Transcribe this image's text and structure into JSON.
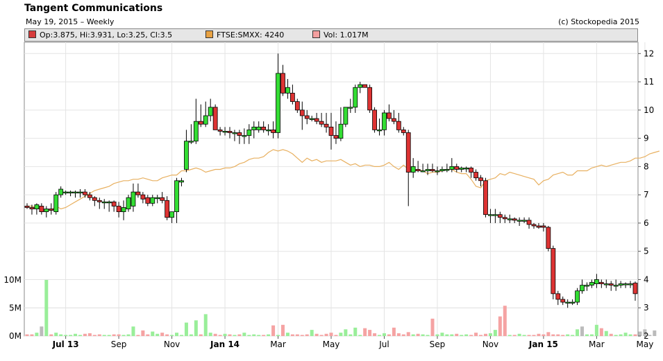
{
  "header": {
    "title": "Tangent Communications",
    "subtitle": "May 19, 2015 – Weekly",
    "copyright": "(c) Stockopedia 2015"
  },
  "legend": [
    {
      "label": "Op:3.875, Hi:3.931, Lo:3.25, Cl:3.5",
      "color": "#d63b3b"
    },
    {
      "label": "FTSE:SMXX: 4240",
      "color": "#e8a243"
    },
    {
      "label": "Vol: 1.017M",
      "color": "#f4a0a0"
    }
  ],
  "chart_data": {
    "type": "candlestick",
    "price_axis": {
      "ticks": [
        "12",
        "11",
        "10",
        "9",
        "8",
        "7",
        "6",
        "5",
        "4",
        "3",
        "2"
      ],
      "ylim": [
        2,
        12.4
      ]
    },
    "volume_axis": {
      "ticks": [
        "10M",
        "5M",
        "0M"
      ],
      "ylim": [
        0,
        10
      ]
    },
    "x_tick_labels": [
      "Jul 13",
      "Sep",
      "Nov",
      "Jan 14",
      "Mar",
      "May",
      "Jul",
      "Sep",
      "Nov",
      "Jan 15",
      "Mar",
      "May"
    ],
    "x_tick_weeks": [
      8,
      19,
      30,
      41,
      52,
      63,
      74,
      85,
      96,
      107,
      118,
      128
    ],
    "colors": {
      "up": "#33dd33",
      "down": "#dd3333",
      "index_line": "#e8b060",
      "vol_up": "#99ee99",
      "vol_down": "#f5a3a3",
      "vol_neutral": "#bbbbbb"
    },
    "candles": [
      [
        6.6,
        6.7,
        6.5,
        6.55
      ],
      [
        6.55,
        6.65,
        6.3,
        6.5
      ],
      [
        6.5,
        6.7,
        6.3,
        6.65
      ],
      [
        6.6,
        6.7,
        6.3,
        6.4
      ],
      [
        6.4,
        6.6,
        6.2,
        6.5
      ],
      [
        6.5,
        6.7,
        6.3,
        6.45
      ],
      [
        6.4,
        7.1,
        6.3,
        7.0
      ],
      [
        7.0,
        7.3,
        6.9,
        7.2
      ],
      [
        7.1,
        7.15,
        7.0,
        7.1
      ],
      [
        7.1,
        7.15,
        6.95,
        7.1
      ],
      [
        7.1,
        7.15,
        6.9,
        7.1
      ],
      [
        7.1,
        7.2,
        6.9,
        7.1
      ],
      [
        7.1,
        7.2,
        6.9,
        7.0
      ],
      [
        7.0,
        7.1,
        6.8,
        6.9
      ],
      [
        6.9,
        6.95,
        6.6,
        6.8
      ],
      [
        6.8,
        6.9,
        6.5,
        6.75
      ],
      [
        6.75,
        6.85,
        6.5,
        6.75
      ],
      [
        6.75,
        6.8,
        6.4,
        6.75
      ],
      [
        6.75,
        6.8,
        6.4,
        6.6
      ],
      [
        6.6,
        6.75,
        6.2,
        6.4
      ],
      [
        6.4,
        6.8,
        6.1,
        6.55
      ],
      [
        6.5,
        7.0,
        6.4,
        6.9
      ],
      [
        6.6,
        7.4,
        6.4,
        7.1
      ],
      [
        7.1,
        7.4,
        6.9,
        7.0
      ],
      [
        7.0,
        7.1,
        6.7,
        6.85
      ],
      [
        6.9,
        7.0,
        6.6,
        6.7
      ],
      [
        6.7,
        7.0,
        6.6,
        6.9
      ],
      [
        6.9,
        7.0,
        6.7,
        6.9
      ],
      [
        6.9,
        7.1,
        6.7,
        6.8
      ],
      [
        6.8,
        6.95,
        6.1,
        6.2
      ],
      [
        6.2,
        6.4,
        6.0,
        6.4
      ],
      [
        6.4,
        7.6,
        6.0,
        7.5
      ],
      [
        7.45,
        7.6,
        7.3,
        7.5
      ],
      [
        7.9,
        9.3,
        7.8,
        8.9
      ],
      [
        8.9,
        9.5,
        8.8,
        8.9
      ],
      [
        8.9,
        10.4,
        8.8,
        9.6
      ],
      [
        9.6,
        10.2,
        9.4,
        9.5
      ],
      [
        9.5,
        10.3,
        9.4,
        9.8
      ],
      [
        9.8,
        10.4,
        9.6,
        10.1
      ],
      [
        10.1,
        10.2,
        9.3,
        9.3
      ],
      [
        9.3,
        9.4,
        9.1,
        9.25
      ],
      [
        9.25,
        9.4,
        9.1,
        9.25
      ],
      [
        9.25,
        9.4,
        9.0,
        9.2
      ],
      [
        9.2,
        9.3,
        8.9,
        9.2
      ],
      [
        9.2,
        9.3,
        8.8,
        9.1
      ],
      [
        9.1,
        9.35,
        8.8,
        9.1
      ],
      [
        9.1,
        9.5,
        8.8,
        9.3
      ],
      [
        9.3,
        9.6,
        9.0,
        9.4
      ],
      [
        9.3,
        9.6,
        9.2,
        9.4
      ],
      [
        9.4,
        9.6,
        9.2,
        9.3
      ],
      [
        9.3,
        9.5,
        9.1,
        9.3
      ],
      [
        9.3,
        9.6,
        9.0,
        9.2
      ],
      [
        9.2,
        12.0,
        9.0,
        11.3
      ],
      [
        11.3,
        11.6,
        10.5,
        10.6
      ],
      [
        10.6,
        11.1,
        10.4,
        10.8
      ],
      [
        10.6,
        10.9,
        10.2,
        10.3
      ],
      [
        10.3,
        10.4,
        9.9,
        10.0
      ],
      [
        10.0,
        10.3,
        9.3,
        9.8
      ],
      [
        9.8,
        10.0,
        9.5,
        9.7
      ],
      [
        9.7,
        9.8,
        9.6,
        9.7
      ],
      [
        9.7,
        9.9,
        9.5,
        9.6
      ],
      [
        9.6,
        9.9,
        9.4,
        9.5
      ],
      [
        9.5,
        9.9,
        9.2,
        9.4
      ],
      [
        9.4,
        9.9,
        8.6,
        9.1
      ],
      [
        9.1,
        9.6,
        8.8,
        9.0
      ],
      [
        9.0,
        10.1,
        8.9,
        9.5
      ],
      [
        9.5,
        10.1,
        9.4,
        10.1
      ],
      [
        10.1,
        10.4,
        9.9,
        10.1
      ],
      [
        10.1,
        10.9,
        9.9,
        10.8
      ],
      [
        10.8,
        11.0,
        10.6,
        10.9
      ],
      [
        10.9,
        10.9,
        10.8,
        10.8
      ],
      [
        10.8,
        10.9,
        9.9,
        10.0
      ],
      [
        10.0,
        10.1,
        9.2,
        9.3
      ],
      [
        9.3,
        9.7,
        9.1,
        9.3
      ],
      [
        9.3,
        10.0,
        9.1,
        9.9
      ],
      [
        9.9,
        10.2,
        9.6,
        9.7
      ],
      [
        9.7,
        10.0,
        9.5,
        9.6
      ],
      [
        9.6,
        9.9,
        9.2,
        9.3
      ],
      [
        9.3,
        9.4,
        9.1,
        9.2
      ],
      [
        9.2,
        9.3,
        6.6,
        7.8
      ],
      [
        7.8,
        8.3,
        7.6,
        8.0
      ],
      [
        7.9,
        8.2,
        7.8,
        7.85
      ],
      [
        7.85,
        8.1,
        7.8,
        7.85
      ],
      [
        7.85,
        8.1,
        7.7,
        7.9
      ],
      [
        7.9,
        8.1,
        7.8,
        7.85
      ],
      [
        7.85,
        8.0,
        7.7,
        7.85
      ],
      [
        7.85,
        8.0,
        7.8,
        7.9
      ],
      [
        7.9,
        8.1,
        7.8,
        7.9
      ],
      [
        7.9,
        8.3,
        7.8,
        8.0
      ],
      [
        8.0,
        8.1,
        7.8,
        7.9
      ],
      [
        7.9,
        8.0,
        7.8,
        7.95
      ],
      [
        7.95,
        8.0,
        7.8,
        7.95
      ],
      [
        7.95,
        8.0,
        7.6,
        7.8
      ],
      [
        7.8,
        7.9,
        7.5,
        7.6
      ],
      [
        7.6,
        7.7,
        7.3,
        7.5
      ],
      [
        7.5,
        7.6,
        6.2,
        6.3
      ],
      [
        6.3,
        6.5,
        6.0,
        6.3
      ],
      [
        6.3,
        6.5,
        6.0,
        6.3
      ],
      [
        6.3,
        6.4,
        6.0,
        6.2
      ],
      [
        6.2,
        6.3,
        6.0,
        6.15
      ],
      [
        6.15,
        6.3,
        6.0,
        6.15
      ],
      [
        6.15,
        6.2,
        6.0,
        6.1
      ],
      [
        6.1,
        6.2,
        5.9,
        6.1
      ],
      [
        6.1,
        6.2,
        6.0,
        6.1
      ],
      [
        6.1,
        6.2,
        5.8,
        5.95
      ],
      [
        5.95,
        6.0,
        5.8,
        5.9
      ],
      [
        5.9,
        6.0,
        5.8,
        5.85
      ],
      [
        5.9,
        6.0,
        5.7,
        5.85
      ],
      [
        5.85,
        5.9,
        5.0,
        5.1
      ],
      [
        5.1,
        5.2,
        3.3,
        3.5
      ],
      [
        3.5,
        3.6,
        3.1,
        3.3
      ],
      [
        3.3,
        3.4,
        3.1,
        3.2
      ],
      [
        3.2,
        3.3,
        3.0,
        3.2
      ],
      [
        3.2,
        3.3,
        3.1,
        3.2
      ],
      [
        3.2,
        3.7,
        3.1,
        3.6
      ],
      [
        3.6,
        4.0,
        3.5,
        3.8
      ],
      [
        3.8,
        3.9,
        3.6,
        3.8
      ],
      [
        3.8,
        4.0,
        3.7,
        3.9
      ],
      [
        3.85,
        4.2,
        3.7,
        4.0
      ],
      [
        3.9,
        4.0,
        3.7,
        3.85
      ],
      [
        3.85,
        4.0,
        3.7,
        3.85
      ],
      [
        3.85,
        3.95,
        3.6,
        3.8
      ],
      [
        3.8,
        4.0,
        3.6,
        3.8
      ],
      [
        3.8,
        3.95,
        3.7,
        3.85
      ],
      [
        3.85,
        3.9,
        3.7,
        3.85
      ],
      [
        3.85,
        3.95,
        3.7,
        3.85
      ],
      [
        3.875,
        3.931,
        3.25,
        3.5
      ]
    ],
    "volume": [
      0.3,
      0.3,
      0.6,
      1.7,
      10.0,
      0.3,
      0.6,
      0.3,
      0.2,
      0.2,
      0.4,
      0.2,
      0.4,
      0.5,
      0.2,
      0.3,
      0.2,
      0.2,
      0.3,
      0.3,
      0.2,
      0.3,
      1.7,
      0.2,
      1.0,
      0.3,
      0.8,
      0.4,
      0.6,
      0.3,
      0.2,
      0.6,
      0.2,
      2.4,
      0.3,
      2.8,
      0.3,
      3.9,
      0.6,
      0.4,
      0.2,
      0.4,
      0.3,
      0.2,
      0.3,
      0.6,
      0.2,
      0.3,
      0.2,
      0.2,
      0.3,
      1.9,
      0.2,
      2.0,
      0.6,
      0.3,
      0.3,
      0.2,
      0.3,
      1.1,
      0.4,
      0.2,
      0.4,
      0.6,
      0.2,
      0.6,
      1.2,
      0.3,
      1.5,
      0.2,
      1.4,
      1.1,
      0.5,
      0.2,
      0.5,
      0.3,
      1.5,
      0.5,
      0.3,
      0.7,
      0.3,
      0.4,
      0.3,
      0.2,
      3.1,
      0.3,
      0.6,
      0.3,
      0.3,
      0.4,
      0.2,
      0.3,
      0.2,
      0.6,
      0.2,
      0.4,
      0.5,
      1.1,
      3.5,
      5.4,
      0.2,
      0.2,
      0.4,
      0.2,
      0.2,
      0.2,
      0.4,
      0.3,
      0.7,
      0.3,
      0.3,
      0.2,
      0.3,
      0.2,
      1.2,
      1.7,
      0.3,
      0.3,
      2.0,
      1.4,
      0.9,
      0.4,
      0.2,
      0.3,
      0.6,
      0.3,
      0.3,
      0.8,
      1.2,
      0.2,
      1.0
    ],
    "index_line": [
      6.6,
      6.6,
      6.55,
      6.5,
      6.45,
      6.45,
      6.6,
      6.5,
      6.55,
      6.65,
      6.75,
      6.85,
      6.95,
      7.05,
      7.15,
      7.2,
      7.25,
      7.3,
      7.4,
      7.45,
      7.5,
      7.5,
      7.55,
      7.55,
      7.6,
      7.55,
      7.5,
      7.5,
      7.6,
      7.65,
      7.7,
      7.7,
      7.85,
      7.85,
      7.9,
      7.95,
      7.9,
      7.8,
      7.85,
      7.9,
      7.9,
      7.95,
      7.95,
      8.0,
      8.1,
      8.15,
      8.25,
      8.3,
      8.3,
      8.35,
      8.5,
      8.6,
      8.55,
      8.6,
      8.55,
      8.45,
      8.3,
      8.15,
      8.3,
      8.2,
      8.25,
      8.15,
      8.2,
      8.2,
      8.2,
      8.25,
      8.15,
      8.05,
      8.1,
      8.0,
      8.05,
      8.05,
      8.0,
      8.0,
      8.05,
      8.15,
      8.0,
      7.9,
      8.05,
      7.9,
      7.85,
      7.9,
      7.85,
      7.75,
      7.8,
      7.8,
      7.85,
      7.9,
      7.9,
      7.8,
      7.75,
      7.75,
      7.55,
      7.3,
      7.25,
      7.5,
      7.55,
      7.6,
      7.75,
      7.7,
      7.8,
      7.75,
      7.7,
      7.65,
      7.6,
      7.55,
      7.35,
      7.5,
      7.55,
      7.7,
      7.75,
      7.8,
      7.7,
      7.7,
      7.85,
      7.85,
      7.85,
      7.95,
      8.0,
      8.05,
      8.0,
      8.05,
      8.1,
      8.15,
      8.15,
      8.2,
      8.3,
      8.3,
      8.35,
      8.45,
      8.5,
      8.55
    ]
  }
}
